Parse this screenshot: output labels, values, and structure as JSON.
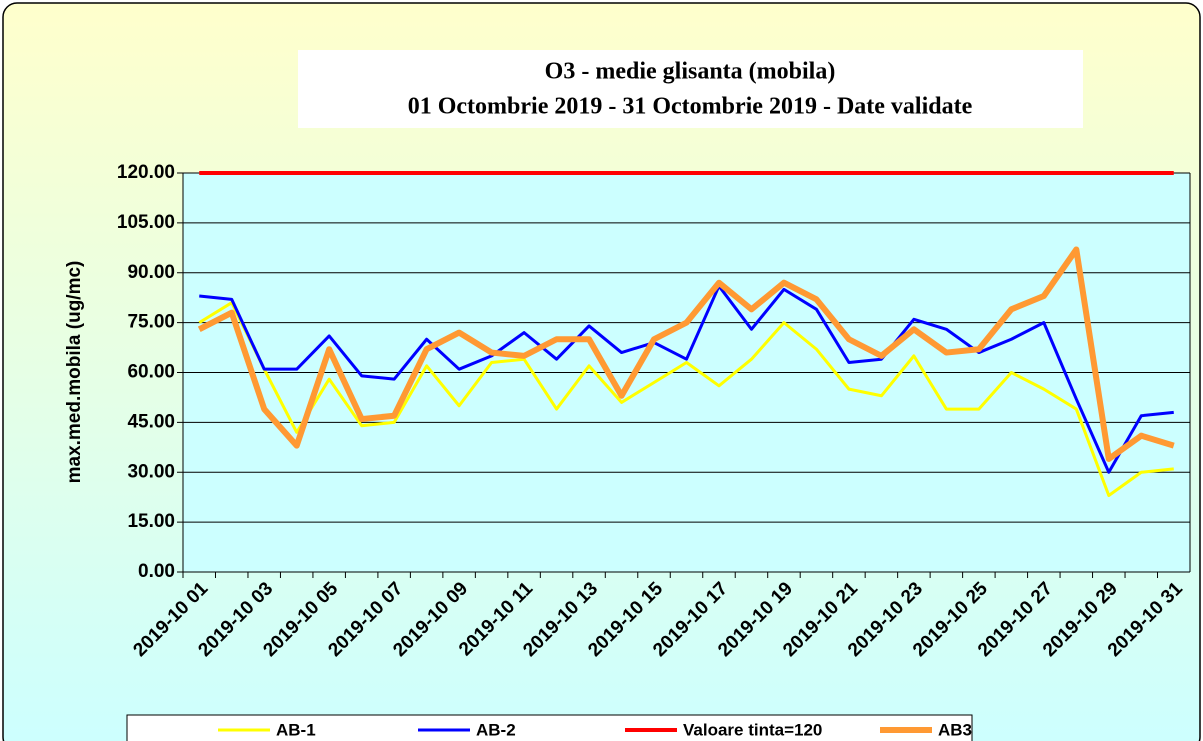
{
  "chart_data": {
    "type": "line",
    "title": "O3 - medie glisanta (mobila)",
    "subtitle": "01 Octombrie 2019 - 31 Octombrie  2019 -  Date validate",
    "y_label": "max.med.mobila (ug/mc)",
    "categories": [
      "2019-10 01",
      null,
      "2019-10 03",
      null,
      "2019-10 05",
      null,
      "2019-10 07",
      null,
      "2019-10 09",
      null,
      "2019-10 11",
      null,
      "2019-10 13",
      null,
      "2019-10 15",
      null,
      "2019-10 17",
      null,
      "2019-10 19",
      null,
      "2019-10 21",
      null,
      "2019-10 23",
      null,
      "2019-10 25",
      null,
      "2019-10 27",
      null,
      "2019-10 29",
      null,
      "2019-10 31"
    ],
    "series": [
      {
        "name": "AB-1",
        "color": "#ffff00",
        "values": [
          75,
          81,
          61,
          42,
          58,
          44,
          45,
          62,
          50,
          63,
          64,
          49,
          62,
          51,
          57,
          63,
          56,
          64,
          75,
          67,
          55,
          53,
          65,
          49,
          49,
          60,
          55,
          49,
          23,
          30,
          31
        ]
      },
      {
        "name": "AB-2",
        "color": "#0000ff",
        "values": [
          83,
          82,
          61,
          61,
          71,
          59,
          58,
          70,
          61,
          65,
          72,
          64,
          74,
          66,
          69,
          64,
          86,
          73,
          85,
          79,
          63,
          64,
          76,
          73,
          66,
          70,
          75,
          52,
          30,
          47,
          48
        ]
      },
      {
        "name": "Valoare tinta=120",
        "color": "#ff0000",
        "values": [
          120,
          120,
          120,
          120,
          120,
          120,
          120,
          120,
          120,
          120,
          120,
          120,
          120,
          120,
          120,
          120,
          120,
          120,
          120,
          120,
          120,
          120,
          120,
          120,
          120,
          120,
          120,
          120,
          120,
          120,
          120
        ]
      },
      {
        "name": "AB3",
        "color": "#ff9933",
        "values": [
          73,
          78,
          49,
          38,
          67,
          46,
          47,
          67,
          72,
          66,
          65,
          70,
          70,
          53,
          70,
          75,
          87,
          79,
          87,
          82,
          70,
          65,
          73,
          66,
          67,
          79,
          83,
          97,
          34,
          41,
          38
        ]
      }
    ],
    "ylim": [
      0,
      120
    ],
    "yticks": [
      {
        "value": 0,
        "label": "0.00"
      },
      {
        "value": 15,
        "label": "15.00"
      },
      {
        "value": 30,
        "label": "30.00"
      },
      {
        "value": 45,
        "label": "45.00"
      },
      {
        "value": 60,
        "label": "60.00"
      },
      {
        "value": 75,
        "label": "75.00"
      },
      {
        "value": 90,
        "label": "90.00"
      },
      {
        "value": 105,
        "label": "105.00"
      },
      {
        "value": 120,
        "label": "120.00"
      }
    ],
    "grid": true,
    "legend": "bottom"
  }
}
